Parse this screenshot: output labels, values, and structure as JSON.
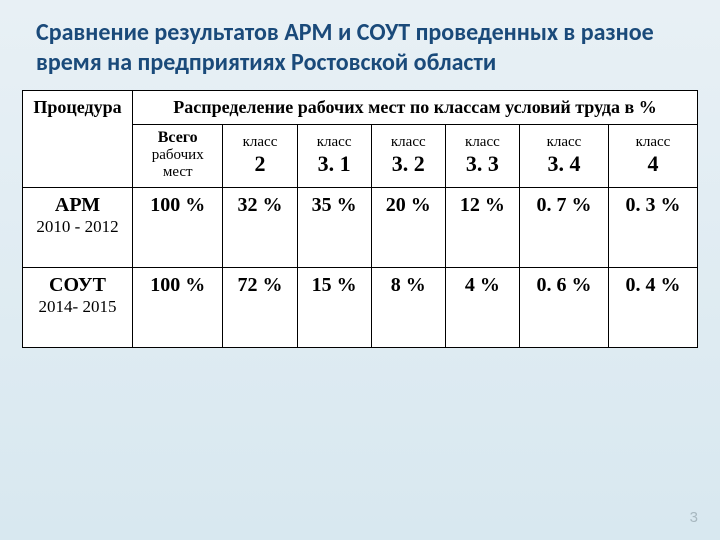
{
  "title": "Сравнение результатов АРМ и СОУТ проведенных в разное время на предприятиях Ростовской области",
  "table": {
    "procHeader": "Процедура",
    "distHeader": "Распределение рабочих мест по классам условий труда в %",
    "cols": [
      {
        "top": "Всего",
        "mid": "рабочих",
        "bot": "мест",
        "val": ""
      },
      {
        "top": "класс",
        "val": "2"
      },
      {
        "top": "класс",
        "val": "3. 1"
      },
      {
        "top": "класс",
        "val": "3. 2"
      },
      {
        "top": "класс",
        "val": "3. 3"
      },
      {
        "top": "класс",
        "val": "3. 4"
      },
      {
        "top": "класс",
        "val": "4"
      }
    ],
    "rows": [
      {
        "name": "АРМ",
        "years": "2010 - 2012",
        "vals": [
          "100 %",
          "32 %",
          "35 %",
          "20 %",
          "12 %",
          "0. 7 %",
          "0. 3 %"
        ]
      },
      {
        "name": "СОУТ",
        "years": "2014- 2015",
        "vals": [
          "100 %",
          "72 %",
          "15 %",
          "8 %",
          "4 %",
          "0. 6 %",
          "0. 4 %"
        ]
      }
    ]
  },
  "pageNumber": "3",
  "colors": {
    "titleColor": "#1a4a7a",
    "bgTop": "#e8f0f5",
    "bgBottom": "#d8e8f0",
    "border": "#000000",
    "text": "#000000",
    "pageNum": "#a8b8c0"
  }
}
